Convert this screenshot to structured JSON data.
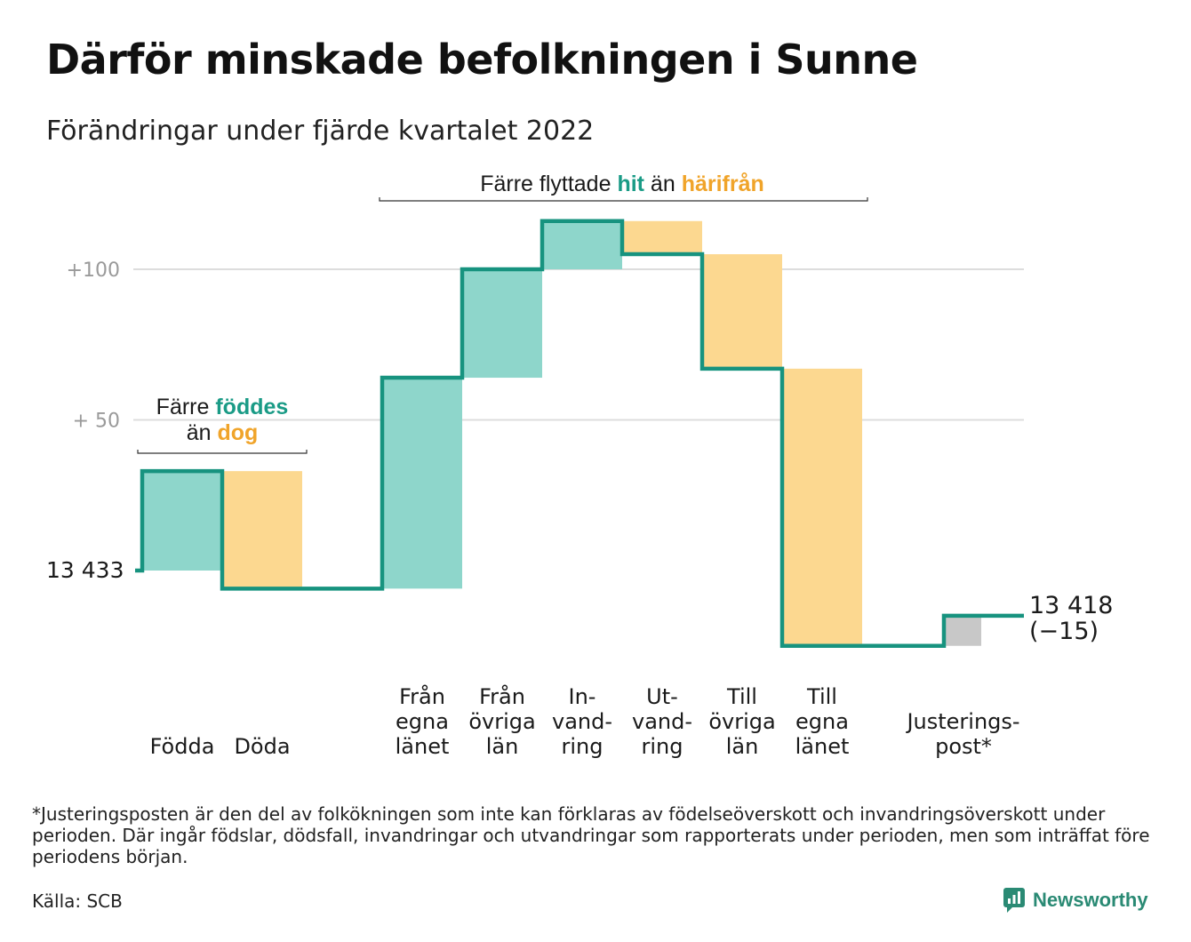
{
  "title": "Därför minskade befolkningen i Sunne",
  "subtitle": "Förändringar under fjärde kvartalet 2022",
  "colors": {
    "increase": "#8ED6CB",
    "decrease": "#FCD890",
    "adjustment": "#C8C8C8",
    "line": "#17937F",
    "teal_text": "#1A9B86",
    "orange_text": "#F0A42A",
    "grid": "#dddddd",
    "tick_text": "#9a9a9a"
  },
  "chart_data": {
    "type": "waterfall",
    "start_value": 13433,
    "start_label": "13 433",
    "end_value": 13418,
    "end_label": "13 418",
    "end_change_label": "(−15)",
    "y_ticks": [
      {
        "value": 13483,
        "label": "+ 50"
      },
      {
        "value": 13533,
        "label": "+100"
      }
    ],
    "ylim": [
      13405,
      13555
    ],
    "bars": [
      {
        "category": [
          "Födda"
        ],
        "value": 33,
        "kind": "increase"
      },
      {
        "category": [
          "Döda"
        ],
        "value": -39,
        "kind": "decrease"
      },
      {
        "category": [
          "Från",
          "egna",
          "länet"
        ],
        "value": 70,
        "kind": "increase"
      },
      {
        "category": [
          "Från",
          "övriga",
          "län"
        ],
        "value": 36,
        "kind": "increase"
      },
      {
        "category": [
          "In-",
          "vand-",
          "ring"
        ],
        "value": 16,
        "kind": "increase"
      },
      {
        "category": [
          "Ut-",
          "vand-",
          "ring"
        ],
        "value": -11,
        "kind": "decrease"
      },
      {
        "category": [
          "Till",
          "övriga",
          "län"
        ],
        "value": -38,
        "kind": "decrease"
      },
      {
        "category": [
          "Till",
          "egna",
          "länet"
        ],
        "value": -92,
        "kind": "decrease"
      },
      {
        "category": [
          "Justerings-",
          "post*"
        ],
        "value": 10,
        "kind": "adjustment"
      }
    ],
    "annotations": [
      {
        "parts": [
          {
            "text": "Färre ",
            "style": "plain"
          },
          {
            "text": "föddes",
            "style": "teal"
          }
        ],
        "parts2": [
          {
            "text": "än ",
            "style": "plain"
          },
          {
            "text": "dog",
            "style": "orange"
          }
        ]
      },
      {
        "parts": [
          {
            "text": "Färre flyttade ",
            "style": "plain"
          },
          {
            "text": "hit",
            "style": "teal"
          },
          {
            "text": " än ",
            "style": "plain"
          },
          {
            "text": "härifrån",
            "style": "orange"
          }
        ]
      }
    ]
  },
  "footnote": "*Justeringsposten är den del av folkökningen som inte kan förklaras av födelseöverskott och invandringsöverskott under perioden. Där ingår födslar, dödsfall, invandringar och utvandringar som rapporterats under perioden, men som inträffat före periodens början.",
  "source": "Källa: SCB",
  "brand": {
    "name": "Newsworthy",
    "icon": "newsworthy-logo-icon"
  }
}
